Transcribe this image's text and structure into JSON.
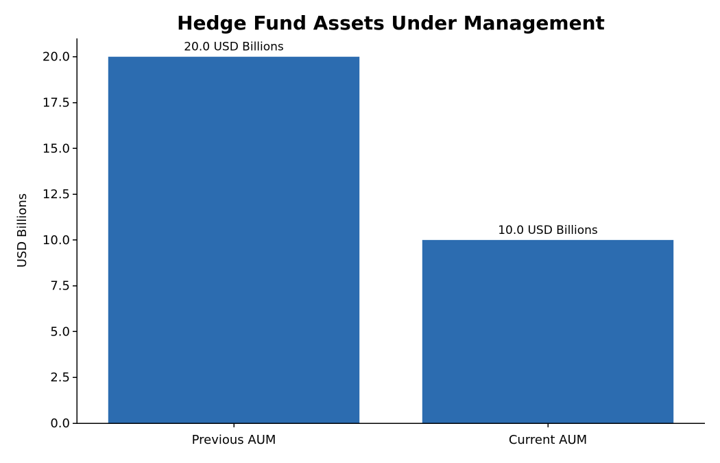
{
  "chart_data": {
    "type": "bar",
    "title": "Hedge Fund Assets Under Management",
    "xlabel": "",
    "ylabel": "USD Billions",
    "categories": [
      "Previous AUM",
      "Current AUM"
    ],
    "values": [
      20.0,
      10.0
    ],
    "data_labels": [
      "20.0 USD Billions",
      "10.0 USD Billions"
    ],
    "ylim": [
      0,
      21
    ],
    "yticks": [
      0.0,
      2.5,
      5.0,
      7.5,
      10.0,
      12.5,
      15.0,
      17.5,
      20.0
    ],
    "ytick_labels": [
      "0.0",
      "2.5",
      "5.0",
      "7.5",
      "10.0",
      "12.5",
      "15.0",
      "17.5",
      "20.0"
    ],
    "grid": false,
    "legend": "none",
    "bar_color": "#2c6cb0"
  }
}
